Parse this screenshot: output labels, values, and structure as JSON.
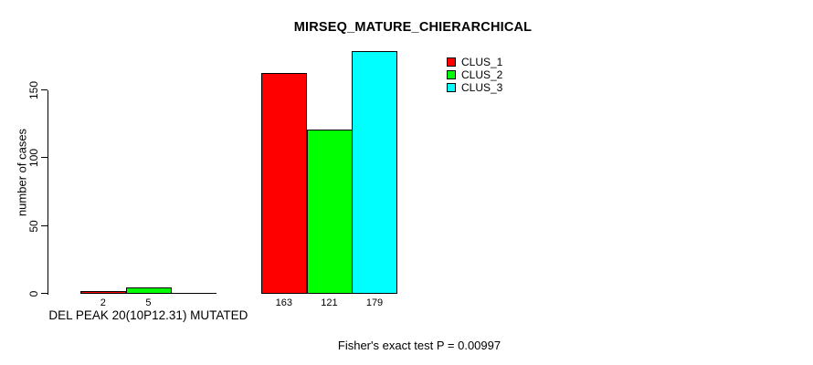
{
  "title": "MIRSEQ_MATURE_CHIERARCHICAL",
  "footnote": "Fisher's exact test P = 0.00997",
  "chart_data": {
    "type": "bar",
    "title": "MIRSEQ_MATURE_CHIERARCHICAL",
    "ylabel": "number of cases",
    "xlabel": "",
    "categories": [
      "DEL PEAK 20(10P12.31) MUTATED",
      ""
    ],
    "series": [
      {
        "name": "CLUS_1",
        "color": "#ff0000",
        "values": [
          2,
          163
        ]
      },
      {
        "name": "CLUS_2",
        "color": "#00ff00",
        "values": [
          5,
          121
        ]
      },
      {
        "name": "CLUS_3",
        "color": "#00ffff",
        "values": [
          0,
          179
        ]
      }
    ],
    "bar_value_labels": [
      [
        "2",
        "5",
        ""
      ],
      [
        "163",
        "121",
        "179"
      ]
    ],
    "yticks": [
      0,
      50,
      100,
      150
    ],
    "ylim": [
      0,
      185
    ],
    "grid": false,
    "legend_position": "top-right",
    "legend_entries": [
      "CLUS_1",
      "CLUS_2",
      "CLUS_3"
    ],
    "annotation": "Fisher's exact test P = 0.00997"
  }
}
